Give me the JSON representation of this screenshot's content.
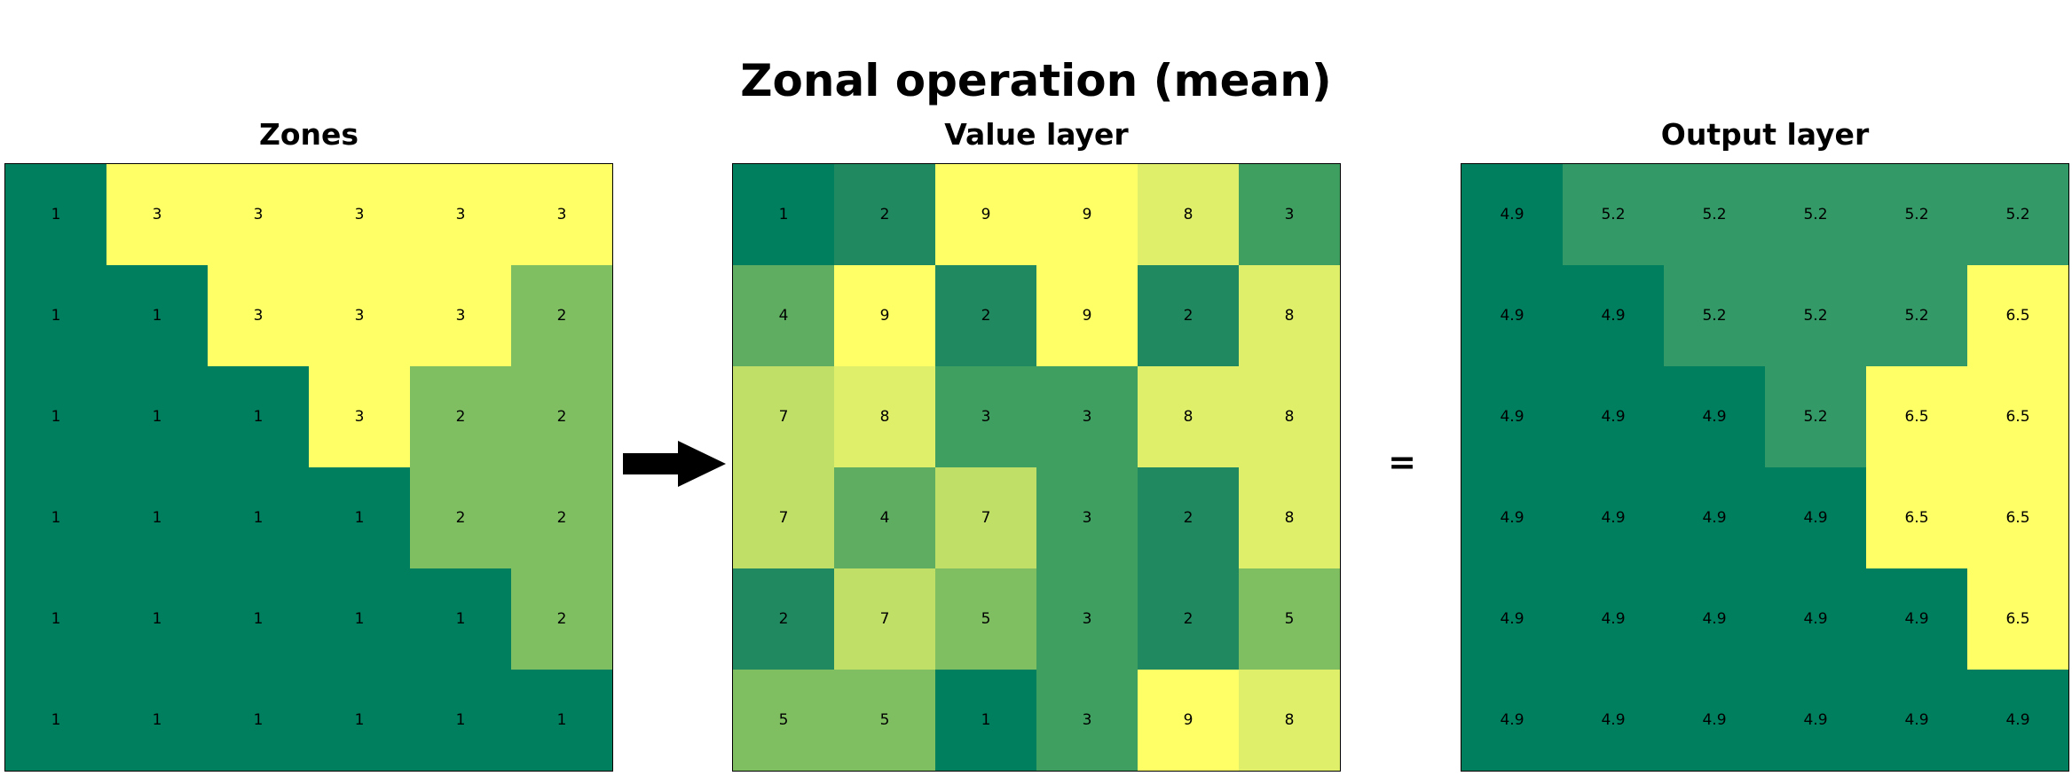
{
  "title": "Zonal operation (mean)",
  "operator": "=",
  "palette": {
    "1": "#007f5f",
    "2": "#20895f",
    "3": "#3f9f60",
    "4": "#5fad61",
    "5": "#7fbf62",
    "7": "#bfdf67",
    "8": "#dfef6a",
    "9": "#ffff66",
    "4.9": "#007f5f",
    "5.2": "#339966",
    "6.5": "#ffff66",
    "zones_1": "#007f5f",
    "zones_2": "#7fbf62",
    "zones_3": "#ffff66"
  },
  "panels": [
    {
      "id": "zones",
      "title": "Zones",
      "cells": [
        [
          "1",
          "3",
          "3",
          "3",
          "3",
          "3"
        ],
        [
          "1",
          "1",
          "3",
          "3",
          "3",
          "2"
        ],
        [
          "1",
          "1",
          "1",
          "3",
          "2",
          "2"
        ],
        [
          "1",
          "1",
          "1",
          "1",
          "2",
          "2"
        ],
        [
          "1",
          "1",
          "1",
          "1",
          "1",
          "2"
        ],
        [
          "1",
          "1",
          "1",
          "1",
          "1",
          "1"
        ]
      ]
    },
    {
      "id": "value-layer",
      "title": "Value layer",
      "cells": [
        [
          "1",
          "2",
          "9",
          "9",
          "8",
          "3"
        ],
        [
          "4",
          "9",
          "2",
          "9",
          "2",
          "8"
        ],
        [
          "7",
          "8",
          "3",
          "3",
          "8",
          "8"
        ],
        [
          "7",
          "4",
          "7",
          "3",
          "2",
          "8"
        ],
        [
          "2",
          "7",
          "5",
          "3",
          "2",
          "5"
        ],
        [
          "5",
          "5",
          "1",
          "3",
          "9",
          "8"
        ]
      ]
    },
    {
      "id": "output-layer",
      "title": "Output layer",
      "cells": [
        [
          "4.9",
          "5.2",
          "5.2",
          "5.2",
          "5.2",
          "5.2"
        ],
        [
          "4.9",
          "4.9",
          "5.2",
          "5.2",
          "5.2",
          "6.5"
        ],
        [
          "4.9",
          "4.9",
          "4.9",
          "5.2",
          "6.5",
          "6.5"
        ],
        [
          "4.9",
          "4.9",
          "4.9",
          "4.9",
          "6.5",
          "6.5"
        ],
        [
          "4.9",
          "4.9",
          "4.9",
          "4.9",
          "4.9",
          "6.5"
        ],
        [
          "4.9",
          "4.9",
          "4.9",
          "4.9",
          "4.9",
          "4.9"
        ]
      ]
    }
  ]
}
